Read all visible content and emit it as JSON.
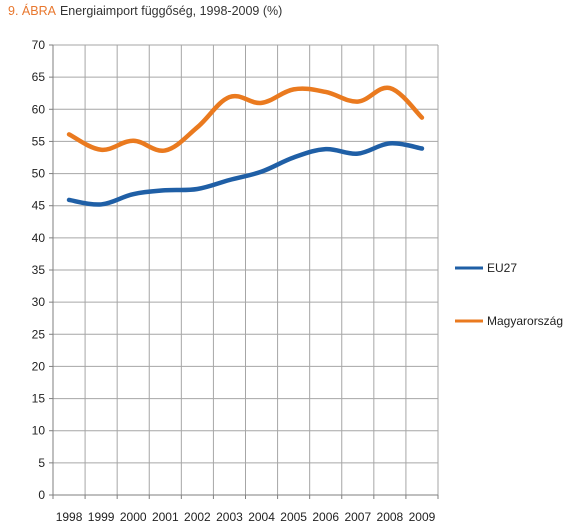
{
  "title": {
    "prefix": "9. ÁBRA",
    "text": "Energiaimport függőség, 1998-2009 (%)"
  },
  "colors": {
    "EU27": "#1f5fa6",
    "Magyarország": "#ea7a1f",
    "title_prefix": "#e8772e",
    "grid": "#a6a6a6"
  },
  "chart_data": {
    "type": "line",
    "title": "Energiaimport függőség, 1998-2009 (%)",
    "xlabel": "",
    "ylabel": "",
    "categories": [
      "1998",
      "1999",
      "2000",
      "2001",
      "2002",
      "2003",
      "2004",
      "2005",
      "2006",
      "2007",
      "2008",
      "2009"
    ],
    "ylim": [
      0,
      70
    ],
    "yticks": [
      0,
      5,
      10,
      15,
      20,
      25,
      30,
      35,
      40,
      45,
      50,
      55,
      60,
      65,
      70
    ],
    "grid": true,
    "legend_position": "right",
    "series": [
      {
        "name": "EU27",
        "values": [
          45.9,
          45.2,
          46.8,
          47.4,
          47.6,
          49.0,
          50.3,
          52.5,
          53.8,
          53.1,
          54.7,
          53.9
        ]
      },
      {
        "name": "Magyarország",
        "values": [
          56.1,
          53.7,
          55.1,
          53.6,
          57.2,
          61.9,
          61.0,
          63.1,
          62.7,
          61.2,
          63.3,
          58.7
        ]
      }
    ]
  }
}
